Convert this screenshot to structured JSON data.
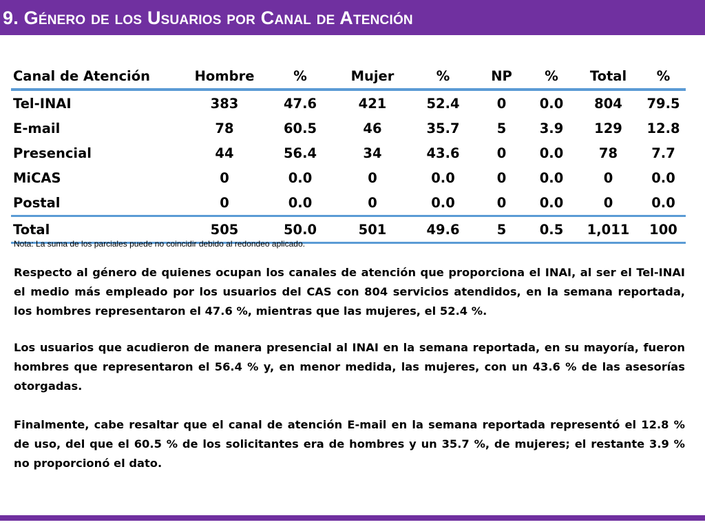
{
  "title": "9. Género de los Usuarios por Canal de Atención",
  "table": {
    "headers": [
      "Canal de Atención",
      "Hombre",
      "%",
      "Mujer",
      "%",
      "NP",
      "%",
      "Total",
      "%"
    ],
    "rows": [
      [
        "Tel-INAI",
        "383",
        "47.6",
        "421",
        "52.4",
        "0",
        "0.0",
        "804",
        "79.5"
      ],
      [
        "E-mail",
        "78",
        "60.5",
        "46",
        "35.7",
        "5",
        "3.9",
        "129",
        "12.8"
      ],
      [
        "Presencial",
        "44",
        "56.4",
        "34",
        "43.6",
        "0",
        "0.0",
        "78",
        "7.7"
      ],
      [
        "MiCAS",
        "0",
        "0.0",
        "0",
        "0.0",
        "0",
        "0.0",
        "0",
        "0.0"
      ],
      [
        "Postal",
        "0",
        "0.0",
        "0",
        "0.0",
        "0",
        "0.0",
        "0",
        "0.0"
      ]
    ],
    "total": [
      "Total",
      "505",
      "50.0",
      "501",
      "49.6",
      "5",
      "0.5",
      "1,011",
      "100"
    ]
  },
  "note": "Nota: La suma de los parciales puede no coincidir debido al redondeo aplicado.",
  "paragraphs": [
    "Respecto al género de quienes ocupan los canales de atención que proporciona el INAI, al ser el Tel-INAI el medio más empleado por los usuarios del CAS con 804 servicios atendidos, en la semana reportada, los hombres representaron el 47.6 %, mientras que las mujeres, el 52.4 %.",
    "Los usuarios que acudieron de manera presencial al INAI en la semana reportada, en su mayoría, fueron hombres que representaron el 56.4 % y, en menor medida, las mujeres, con un 43.6 % de las asesorías otorgadas.",
    "Finalmente, cabe resaltar que el canal de atención E-mail en la semana reportada representó el 12.8 % de uso, del que el 60.5 % de los solicitantes era de hombres y un 35.7 %, de mujeres; el restante 3.9 % no proporcionó el dato."
  ],
  "colors": {
    "accent": "#7030a0",
    "table_rule": "#5b9bd5"
  }
}
